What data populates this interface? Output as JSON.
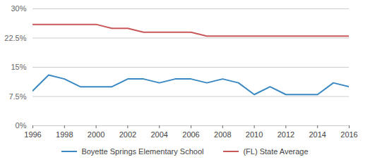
{
  "chart_data": {
    "type": "line",
    "x": [
      1996,
      1997,
      1998,
      1999,
      2000,
      2001,
      2002,
      2003,
      2004,
      2005,
      2006,
      2007,
      2008,
      2009,
      2010,
      2011,
      2012,
      2013,
      2014,
      2015,
      2016
    ],
    "series": [
      {
        "name": "Boyette Springs Elementary School",
        "color": "#3a89c2",
        "values": [
          9,
          13,
          12,
          10,
          10,
          10,
          12,
          12,
          11,
          12,
          12,
          11,
          12,
          11,
          8,
          10,
          8,
          8,
          8,
          11,
          10
        ]
      },
      {
        "name": "(FL) State Average",
        "color": "#c9585b",
        "values": [
          26,
          26,
          26,
          26,
          26,
          25,
          25,
          24,
          24,
          24,
          24,
          23,
          23,
          23,
          23,
          23,
          23,
          23,
          23,
          23,
          23
        ]
      }
    ],
    "xlim": [
      1996,
      2016
    ],
    "xticks": [
      1996,
      1998,
      2000,
      2002,
      2004,
      2006,
      2008,
      2010,
      2012,
      2014,
      2016
    ],
    "ylim": [
      0,
      30
    ],
    "yticks": [
      {
        "value": 0,
        "label": "0%"
      },
      {
        "value": 7.5,
        "label": "7.5%"
      },
      {
        "value": 15,
        "label": "15%"
      },
      {
        "value": 22.5,
        "label": "22.5%"
      },
      {
        "value": 30,
        "label": "30%"
      }
    ],
    "grid": true,
    "legend": "bottom"
  }
}
